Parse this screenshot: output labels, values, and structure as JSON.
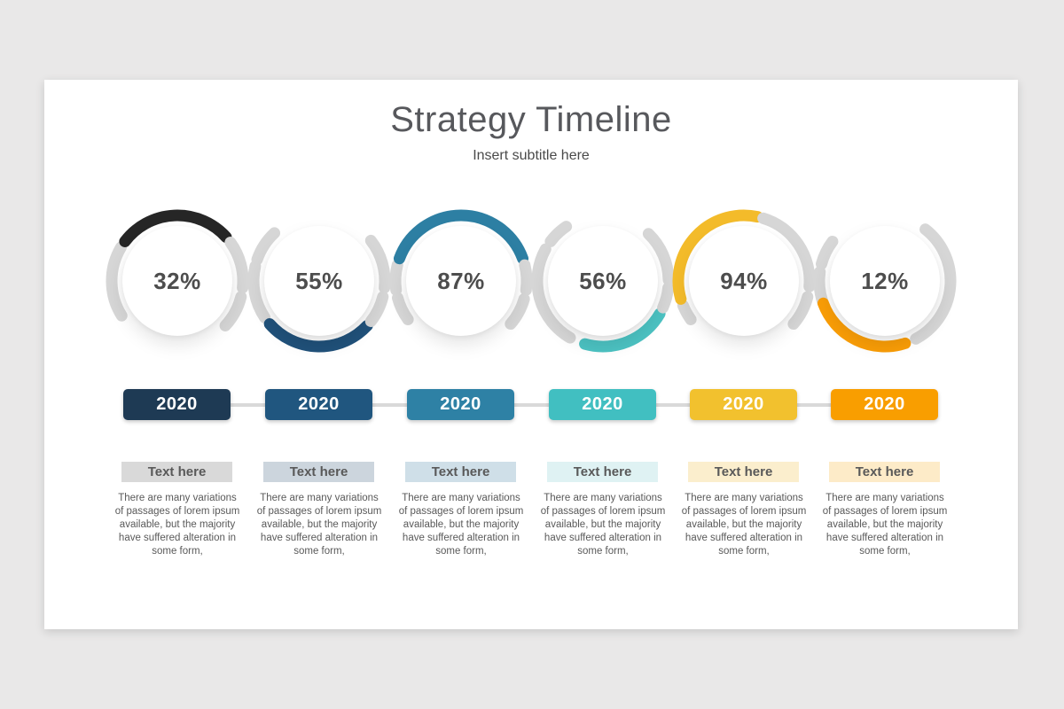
{
  "slide": {
    "title": "Strategy Timeline",
    "subtitle": "Insert subtitle here",
    "background": "#e9e8e8",
    "card_background": "#ffffff",
    "ring_track_color": "#d6d6d6",
    "connector_color": "#d9d9d9"
  },
  "items": [
    {
      "percent": "32%",
      "year": "2020",
      "label": "Text here",
      "description": "There are many variations of passages of lorem ipsum available, but the majority have suffered alteration in some form,",
      "accent_color": "#262626",
      "badge_color": "#1e3a54",
      "label_bg": "#d9d9d9",
      "ring_segments": [
        {
          "part": "track",
          "from": 238,
          "to": 301
        },
        {
          "part": "accent",
          "from": 307,
          "to": 408
        },
        {
          "part": "track",
          "from": 54,
          "to": 96
        },
        {
          "part": "track",
          "from": 104,
          "to": 133
        }
      ]
    },
    {
      "percent": "55%",
      "year": "2020",
      "label": "Text here",
      "description": "There are many variations of passages of lorem ipsum available, but the majority have suffered alteration in some form,",
      "accent_color": "#20517a",
      "badge_color": "#20567f",
      "label_bg": "#ccd5dd",
      "ring_segments": [
        {
          "part": "track",
          "from": 289,
          "to": 317
        },
        {
          "part": "track",
          "from": 236,
          "to": 283
        },
        {
          "part": "accent",
          "from": 133,
          "to": 229
        },
        {
          "part": "track",
          "from": 52,
          "to": 96
        },
        {
          "part": "track",
          "from": 104,
          "to": 128
        }
      ]
    },
    {
      "percent": "87%",
      "year": "2020",
      "label": "Text here",
      "description": "There are many variations of passages of lorem ipsum available, but the majority have suffered alteration in some form,",
      "accent_color": "#2d7fa3",
      "badge_color": "#2e81a5",
      "label_bg": "#cfdfe8",
      "ring_segments": [
        {
          "part": "track",
          "from": 234,
          "to": 255
        },
        {
          "part": "track",
          "from": 262,
          "to": 284
        },
        {
          "part": "accent",
          "from": 290,
          "to": 430
        },
        {
          "part": "track",
          "from": 76,
          "to": 98
        },
        {
          "part": "track",
          "from": 106,
          "to": 131
        }
      ]
    },
    {
      "percent": "56%",
      "year": "2020",
      "label": "Text here",
      "description": "There are many variations of passages of lorem ipsum available, but the majority have suffered alteration in some form,",
      "accent_color": "#4cc2c2",
      "badge_color": "#41bfc1",
      "label_bg": "#dff2f3",
      "ring_segments": [
        {
          "part": "track",
          "from": 307,
          "to": 326
        },
        {
          "part": "track",
          "from": 210,
          "to": 299
        },
        {
          "part": "accent",
          "from": 120,
          "to": 196
        },
        {
          "part": "track",
          "from": 96,
          "to": 114
        },
        {
          "part": "track",
          "from": 44,
          "to": 89
        }
      ]
    },
    {
      "percent": "94%",
      "year": "2020",
      "label": "Text here",
      "description": "There are many variations of passages of lorem ipsum available, but the majority have suffered alteration in some form,",
      "accent_color": "#f3bb2a",
      "badge_color": "#f2c12e",
      "label_bg": "#fbeecd",
      "ring_segments": [
        {
          "part": "track",
          "from": 234,
          "to": 248
        },
        {
          "part": "accent",
          "from": 254,
          "to": 372
        },
        {
          "part": "track",
          "from": 17,
          "to": 95
        },
        {
          "part": "track",
          "from": 104,
          "to": 131
        }
      ]
    },
    {
      "percent": "12%",
      "year": "2020",
      "label": "Text here",
      "description": "There are many variations of passages of lorem ipsum available, but the majority have suffered alteration in some form,",
      "accent_color": "#f99d07",
      "badge_color": "#f99e00",
      "label_bg": "#fdebc8",
      "ring_segments": [
        {
          "part": "track",
          "from": 285,
          "to": 307
        },
        {
          "part": "track",
          "from": 252,
          "to": 278
        },
        {
          "part": "accent",
          "from": 162,
          "to": 250
        },
        {
          "part": "track",
          "from": 38,
          "to": 152
        }
      ]
    }
  ]
}
